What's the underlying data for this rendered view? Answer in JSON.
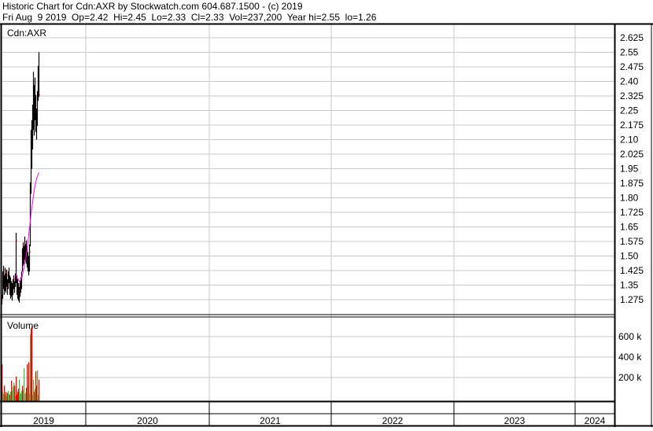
{
  "header": {
    "title": "Historic Chart for Cdn:AXR by Stockwatch.com 604.687.1500 - (c) 2019",
    "summary": "Fri Aug  9 2019  Op=2.42  Hi=2.45  Lo=2.33  Cl=2.33  Vol=237,200  Year hi=2.55  lo=1.26"
  },
  "colors": {
    "price": "#000000",
    "close_tick": "#ff0000",
    "moving_average": "#ff00ff",
    "volume_up": "#4cb848",
    "volume_down": "#ff0000",
    "volume_flat": "#a0a0a0",
    "grid": "#c8c8c8"
  },
  "chart_data": [
    {
      "type": "ohlc",
      "title": "Cdn:AXR",
      "ylim": [
        1.2,
        2.68
      ],
      "y_ticks": [
        "2.625",
        "2.55",
        "2.475",
        "2.40",
        "2.325",
        "2.25",
        "2.175",
        "2.10",
        "2.025",
        "1.95",
        "1.875",
        "1.80",
        "1.725",
        "1.65",
        "1.575",
        "1.50",
        "1.425",
        "1.35",
        "1.275"
      ],
      "x_ticks": [
        "2019",
        "2020",
        "2021",
        "2022",
        "2023",
        "2024"
      ],
      "grid": true,
      "series": {
        "high": [
          1.3,
          1.42,
          1.45,
          1.4,
          1.44,
          1.41,
          1.43,
          1.38,
          1.42,
          1.44,
          1.4,
          1.39,
          1.37,
          1.36,
          1.38,
          1.4,
          1.37,
          1.41,
          1.62,
          1.4,
          1.38,
          1.36,
          1.34,
          1.37,
          1.39,
          1.42,
          1.54,
          1.57,
          1.55,
          1.6,
          1.56,
          1.58,
          1.55,
          1.52,
          1.5,
          1.56,
          1.88,
          2.15,
          2.2,
          2.28,
          2.45,
          2.38,
          2.42,
          2.33,
          2.26,
          2.35,
          2.48,
          2.55
        ],
        "low": [
          1.25,
          1.28,
          1.33,
          1.3,
          1.32,
          1.31,
          1.34,
          1.3,
          1.33,
          1.36,
          1.3,
          1.28,
          1.29,
          1.27,
          1.3,
          1.33,
          1.31,
          1.34,
          1.36,
          1.3,
          1.28,
          1.27,
          1.26,
          1.29,
          1.31,
          1.33,
          1.42,
          1.45,
          1.46,
          1.48,
          1.47,
          1.46,
          1.44,
          1.42,
          1.4,
          1.42,
          1.55,
          1.82,
          1.95,
          2.05,
          2.15,
          2.12,
          2.2,
          2.14,
          2.1,
          2.17,
          2.3,
          2.32
        ],
        "close": [
          1.28,
          1.38,
          1.4,
          1.35,
          1.42,
          1.33,
          1.4,
          1.36,
          1.41,
          1.38,
          1.32,
          1.36,
          1.34,
          1.3,
          1.36,
          1.38,
          1.35,
          1.38,
          1.58,
          1.33,
          1.31,
          1.3,
          1.32,
          1.35,
          1.36,
          1.39,
          1.5,
          1.55,
          1.48,
          1.56,
          1.52,
          1.5,
          1.47,
          1.45,
          1.48,
          1.52,
          1.85,
          2.05,
          2.1,
          2.22,
          2.38,
          2.32,
          2.28,
          2.25,
          2.2,
          2.3,
          2.45,
          2.33
        ],
        "moving_average": [
          null,
          null,
          null,
          null,
          null,
          null,
          null,
          null,
          null,
          null,
          null,
          null,
          null,
          null,
          null,
          null,
          null,
          1.4,
          1.4,
          1.39,
          1.38,
          1.38,
          1.37,
          1.37,
          1.38,
          1.39,
          1.4,
          1.42,
          1.44,
          1.46,
          1.48,
          1.51,
          1.54,
          1.57,
          1.61,
          1.64,
          1.68,
          1.72,
          1.75,
          1.78,
          1.81,
          1.84,
          1.86,
          1.88,
          1.9,
          1.91,
          1.92,
          1.93
        ]
      }
    },
    {
      "type": "bar",
      "title": "Volume",
      "ylim": [
        0,
        750
      ],
      "y_ticks": [
        "600 k",
        "400 k",
        "200 k"
      ],
      "y_tick_values": [
        600,
        400,
        200
      ],
      "values": [
        330,
        60,
        40,
        120,
        30,
        60,
        20,
        50,
        70,
        40,
        30,
        60,
        170,
        70,
        110,
        150,
        120,
        20,
        210,
        30,
        60,
        90,
        180,
        50,
        40,
        70,
        120,
        80,
        290,
        40,
        50,
        100,
        330,
        120,
        350,
        40,
        620,
        680,
        700,
        30,
        180,
        60,
        90,
        260,
        120,
        270,
        30,
        180
      ],
      "direction": [
        "d",
        "u",
        "u",
        "d",
        "u",
        "d",
        "u",
        "d",
        "u",
        "u",
        "d",
        "u",
        "d",
        "u",
        "u",
        "u",
        "d",
        "u",
        "d",
        "d",
        "d",
        "d",
        "u",
        "u",
        "u",
        "u",
        "d",
        "u",
        "u",
        "f",
        "u",
        "d",
        "d",
        "u",
        "d",
        "u",
        "u",
        "d",
        "d",
        "u",
        "u",
        "d",
        "u",
        "d",
        "d",
        "u",
        "u",
        "d"
      ]
    }
  ]
}
